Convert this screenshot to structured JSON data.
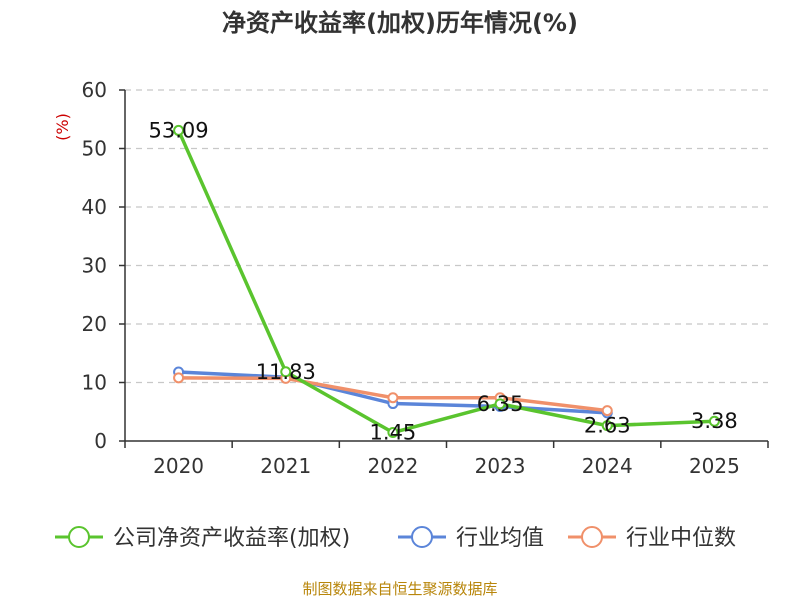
{
  "chart_data": {
    "type": "line",
    "title": "净资产收益率(加权)历年情况(%)",
    "ylabel": "(%)",
    "xlabel": "",
    "categories": [
      "2020",
      "2021",
      "2022",
      "2023",
      "2024",
      "2025"
    ],
    "ylim": [
      0,
      60
    ],
    "yticks": [
      0,
      10,
      20,
      30,
      40,
      50,
      60
    ],
    "grid": true,
    "legend_position": "bottom",
    "series": [
      {
        "name": "公司净资产收益率(加权)",
        "color": "#5ac42e",
        "values": [
          53.09,
          11.83,
          1.45,
          6.35,
          2.63,
          3.38
        ],
        "labels": [
          "53.09",
          "11.83",
          "1.45",
          "6.35",
          "2.63",
          "3.38"
        ]
      },
      {
        "name": "行业均值",
        "color": "#5b85d9",
        "values": [
          11.8,
          10.9,
          6.4,
          5.9,
          4.8,
          null
        ]
      },
      {
        "name": "行业中位数",
        "color": "#f0906a",
        "values": [
          10.8,
          10.7,
          7.4,
          7.4,
          5.2,
          null
        ]
      }
    ],
    "source": "制图数据来自恒生聚源数据库"
  }
}
